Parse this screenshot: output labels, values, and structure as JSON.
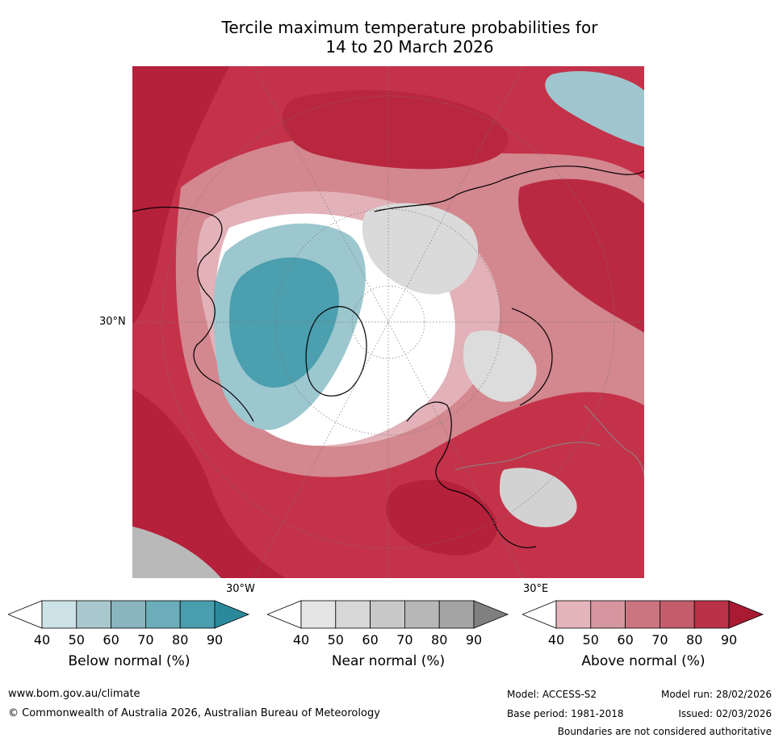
{
  "title": {
    "line1": "Tercile maximum temperature probabilities for",
    "line2": "14 to 20 March 2026"
  },
  "map": {
    "lat_label": "30°N",
    "lon_label_west": "30°W",
    "lon_label_east": "30°E",
    "colors": {
      "above_strong": "#b5203b",
      "above_mid": "#c95c6a",
      "above_light": "#e0a6ad",
      "below_strong": "#3c97a8",
      "below_mid": "#7fb8c3",
      "below_light": "#c6dfe4",
      "near": "#d6d6d6",
      "land_line": "#000000",
      "border_line": "#888888"
    }
  },
  "colorbars": [
    {
      "label": "Below normal (%)",
      "ticks": [
        "40",
        "50",
        "60",
        "70",
        "80",
        "90"
      ],
      "colors": [
        "#cde2e7",
        "#a8c8ce",
        "#8ab4bf",
        "#6badb9",
        "#4a9dad",
        "#2a8a9c"
      ]
    },
    {
      "label": "Near normal (%)",
      "ticks": [
        "40",
        "50",
        "60",
        "70",
        "80",
        "90"
      ],
      "colors": [
        "#e5e5e5",
        "#d7d7d7",
        "#c8c8c8",
        "#b7b7b7",
        "#a4a4a4",
        "#808080"
      ]
    },
    {
      "label": "Above normal (%)",
      "ticks": [
        "40",
        "50",
        "60",
        "70",
        "80",
        "90"
      ],
      "colors": [
        "#e3b4ba",
        "#d6969f",
        "#cb7580",
        "#c35d6b",
        "#b93247",
        "#a91b33"
      ]
    }
  ],
  "footer": {
    "website": "www.bom.gov.au/climate",
    "copyright": "© Commonwealth of Australia 2026, Australian Bureau of Meteorology",
    "model": "Model: ACCESS-S2",
    "model_run": "Model run: 28/02/2026",
    "base_period": "Base period: 1981-2018",
    "issued": "Issued: 02/03/2026",
    "disclaimer": "Boundaries are not considered authoritative"
  }
}
